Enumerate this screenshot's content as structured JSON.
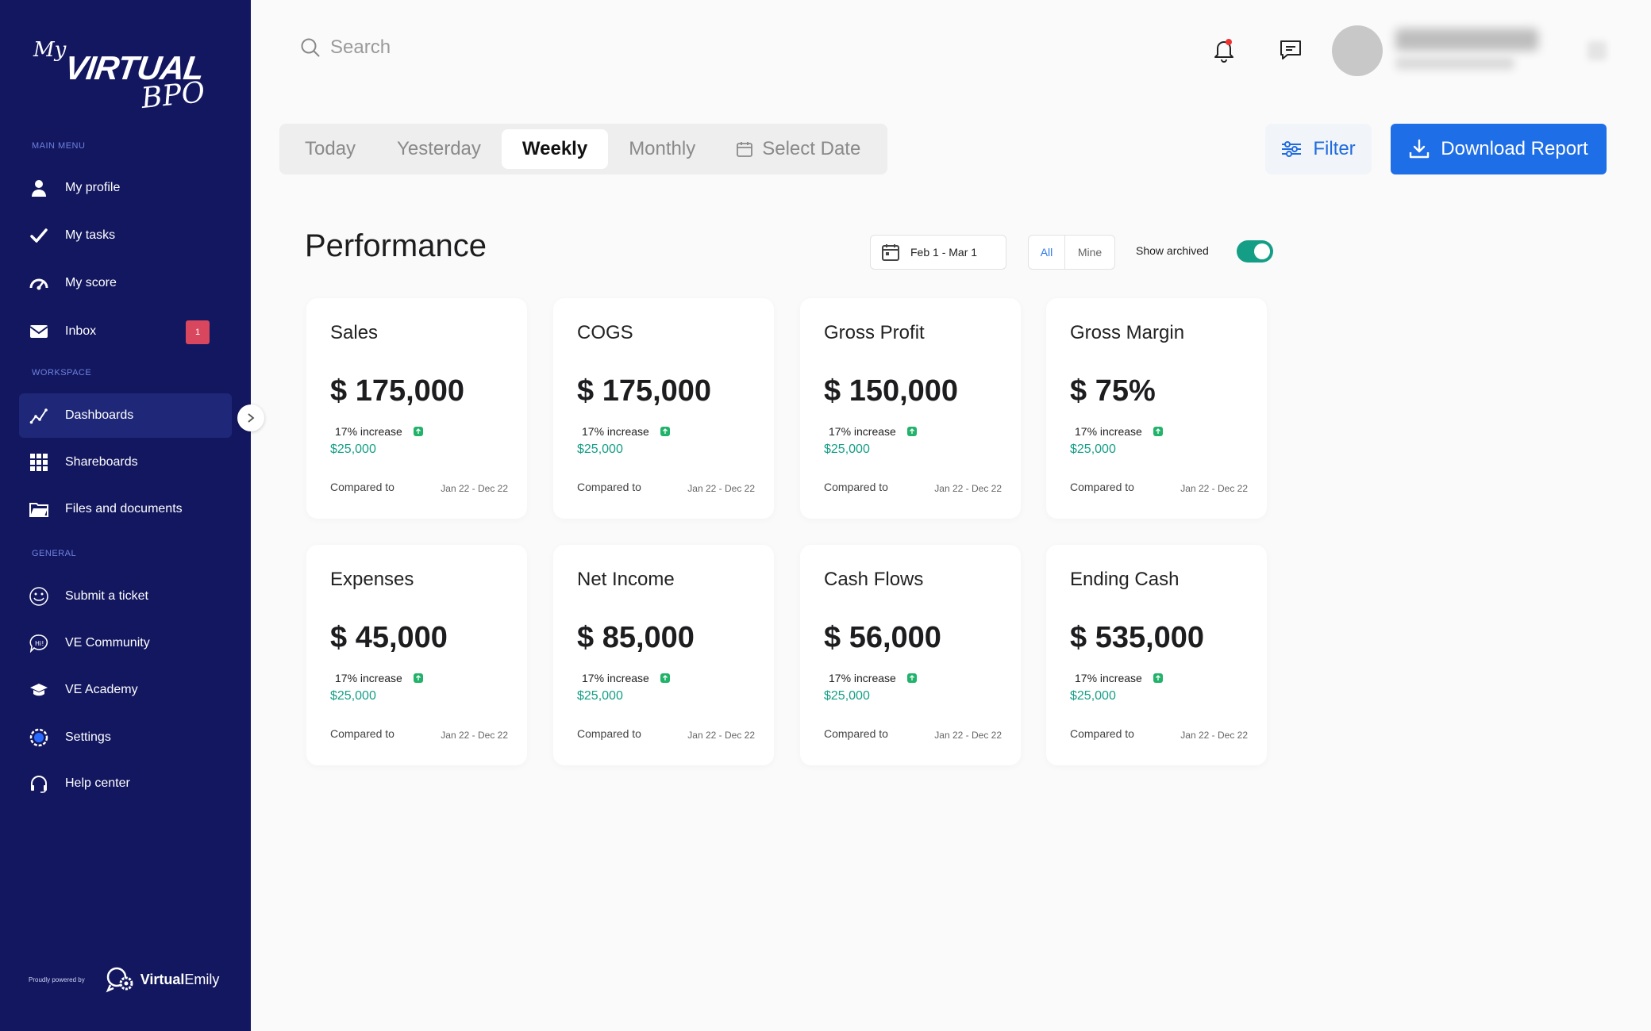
{
  "logo": {
    "my": "My",
    "virtual": "VIRTUAL",
    "bpo": "BPO"
  },
  "sidebar": {
    "main_menu_label": "MAIN MENU",
    "workspace_label": "WORKSPACE",
    "general_label": "GENERAL",
    "main_items": [
      {
        "label": "My profile",
        "icon": "user-icon"
      },
      {
        "label": "My tasks",
        "icon": "check-icon"
      },
      {
        "label": "My score",
        "icon": "gauge-icon"
      },
      {
        "label": "Inbox",
        "icon": "mail-icon",
        "badge": "1"
      }
    ],
    "workspace_items": [
      {
        "label": "Dashboards",
        "icon": "chart-line-icon",
        "active": true
      },
      {
        "label": "Shareboards",
        "icon": "grid-icon"
      },
      {
        "label": "Files and documents",
        "icon": "folder-icon"
      }
    ],
    "general_items": [
      {
        "label": "Submit a ticket",
        "icon": "smile-icon"
      },
      {
        "label": "VE Community",
        "icon": "chat-bubble-icon"
      },
      {
        "label": "VE Academy",
        "icon": "graduation-cap-icon"
      },
      {
        "label": "Settings",
        "icon": "gear-icon"
      },
      {
        "label": "Help center",
        "icon": "headset-icon"
      }
    ],
    "powered_by": "Proudly powered by",
    "brand_bold": "Virtual",
    "brand_rest": "Emily"
  },
  "header": {
    "search_placeholder": "Search"
  },
  "tabs": [
    "Today",
    "Yesterday",
    "Weekly",
    "Monthly",
    "Select Date"
  ],
  "active_tab": "Weekly",
  "actions": {
    "filter": "Filter",
    "download": "Download Report"
  },
  "performance": {
    "title": "Performance",
    "date_range": "Feb 1 - Mar 1",
    "seg_all": "All",
    "seg_mine": "Mine",
    "show_archived": "Show archived",
    "archived_on": true
  },
  "cards": [
    {
      "title": "Sales",
      "value": "$ 175,000",
      "increase": "17% increase",
      "amount": "$25,000",
      "compared": "Compared to",
      "range": "Jan 22 - Dec 22"
    },
    {
      "title": "COGS",
      "value": "$ 175,000",
      "increase": "17% increase",
      "amount": "$25,000",
      "compared": "Compared to",
      "range": "Jan 22 - Dec 22"
    },
    {
      "title": "Gross Profit",
      "value": "$ 150,000",
      "increase": "17% increase",
      "amount": "$25,000",
      "compared": "Compared to",
      "range": "Jan 22 - Dec 22"
    },
    {
      "title": "Gross Margin",
      "value": "$ 75%",
      "increase": "17% increase",
      "amount": "$25,000",
      "compared": "Compared to",
      "range": "Jan 22 - Dec 22"
    },
    {
      "title": "Expenses",
      "value": "$ 45,000",
      "increase": "17% increase",
      "amount": "$25,000",
      "compared": "Compared to",
      "range": "Jan 22 - Dec 22"
    },
    {
      "title": "Net Income",
      "value": "$ 85,000",
      "increase": "17% increase",
      "amount": "$25,000",
      "compared": "Compared to",
      "range": "Jan 22 - Dec 22"
    },
    {
      "title": "Cash Flows",
      "value": "$ 56,000",
      "increase": "17% increase",
      "amount": "$25,000",
      "compared": "Compared to",
      "range": "Jan 22 - Dec 22"
    },
    {
      "title": "Ending Cash",
      "value": "$ 535,000",
      "increase": "17% increase",
      "amount": "$25,000",
      "compared": "Compared to",
      "range": "Jan 22 - Dec 22"
    }
  ]
}
